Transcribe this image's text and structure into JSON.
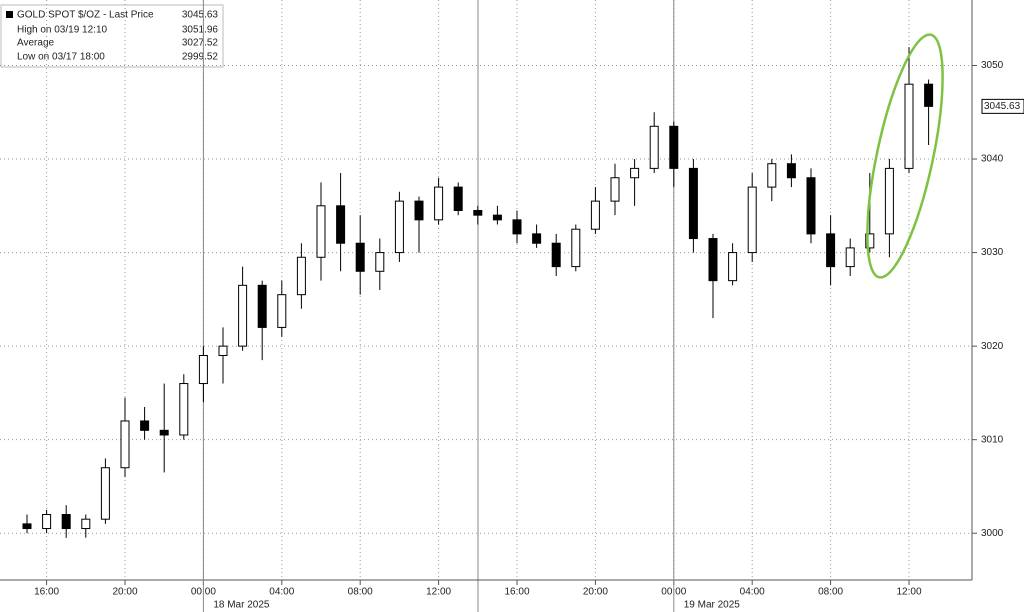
{
  "chart_data": {
    "type": "candlestick",
    "legend": {
      "title": "GOLD SPOT $/OZ - Last Price",
      "title_value": 3045.63,
      "rows": [
        {
          "label": "High on 03/19 12:10",
          "value": 3051.96
        },
        {
          "label": "Average",
          "value": 3027.52
        },
        {
          "label": "Low on 03/17 18:00",
          "value": 2999.52
        }
      ]
    },
    "categories": [
      null,
      "16:00",
      null,
      null,
      null,
      "20:00",
      null,
      null,
      null,
      "00:00",
      null,
      null,
      null,
      "04:00",
      null,
      null,
      null,
      "08:00",
      null,
      null,
      null,
      "12:00",
      null,
      null,
      null,
      "16:00",
      null,
      null,
      null,
      "20:00",
      null,
      null,
      null,
      "00:00",
      null,
      null,
      null,
      "04:00",
      null,
      null,
      null,
      "08:00",
      null,
      null,
      null,
      "12:00",
      null
    ],
    "date_labels": [
      "18 Mar 2025",
      "19 Mar 2025"
    ],
    "open": [
      3001,
      3000.5,
      3002,
      3000.5,
      3001.5,
      3007,
      3012,
      3011,
      3010.5,
      3016,
      3019,
      3020,
      3026.5,
      3022,
      3025.5,
      3029.5,
      3035,
      3031,
      3028,
      3030,
      3035.5,
      3033.5,
      3037,
      3034.5,
      3034,
      3033.5,
      3032,
      3031,
      3028.5,
      3032.5,
      3035.5,
      3038,
      3039,
      3043.5,
      3039,
      3031.5,
      3027,
      3030,
      3037,
      3039.5,
      3038,
      3032,
      3028.5,
      3030.5,
      3032,
      3039,
      3048
    ],
    "high": [
      3002,
      3002.5,
      3003,
      3002,
      3008,
      3014.5,
      3013.5,
      3016,
      3017,
      3020,
      3022,
      3028.5,
      3027,
      3027,
      3031,
      3037.5,
      3038.5,
      3034,
      3031.5,
      3036.5,
      3036,
      3038,
      3037.5,
      3035,
      3035,
      3034.5,
      3033,
      3032,
      3033,
      3037,
      3039.5,
      3040,
      3045,
      3044,
      3040,
      3032,
      3031,
      3038.5,
      3040,
      3040.5,
      3039,
      3034,
      3031.5,
      3038.5,
      3040,
      3051.96,
      3048.5
    ],
    "low": [
      3000,
      3000,
      2999.5,
      2999.52,
      3001,
      3006,
      3010,
      3006.5,
      3010,
      3014,
      3016,
      3019.5,
      3018.5,
      3021,
      3024,
      3027,
      3028,
      3025.5,
      3026,
      3029,
      3030,
      3033,
      3034,
      3033,
      3033,
      3031,
      3030.5,
      3027.5,
      3028,
      3032,
      3034,
      3035,
      3038.5,
      3037,
      3030,
      3023,
      3026.5,
      3029,
      3035.5,
      3037,
      3031,
      3026.5,
      3027.5,
      3030,
      3029.5,
      3038.5,
      3041.5
    ],
    "close": [
      3000.5,
      3002,
      3000.5,
      3001.5,
      3007,
      3012,
      3011,
      3010.5,
      3016,
      3019,
      3020,
      3026.5,
      3022,
      3025.5,
      3029.5,
      3035,
      3031,
      3028,
      3030,
      3035.5,
      3033.5,
      3037,
      3034.5,
      3034,
      3033.5,
      3032,
      3031,
      3028.5,
      3032.5,
      3035.5,
      3038,
      3039,
      3043.5,
      3039,
      3031.5,
      3027,
      3030,
      3037,
      3039.5,
      3038,
      3032,
      3028.5,
      3030.5,
      3032,
      3039,
      3048,
      3045.63
    ],
    "ylim": [
      2995,
      3057
    ],
    "yticks": [
      3000,
      3010,
      3020,
      3030,
      3040,
      3050
    ],
    "grid": true,
    "up_color": "#ffffff",
    "down_color": "#000000",
    "highlight_color": "#7dc242"
  }
}
